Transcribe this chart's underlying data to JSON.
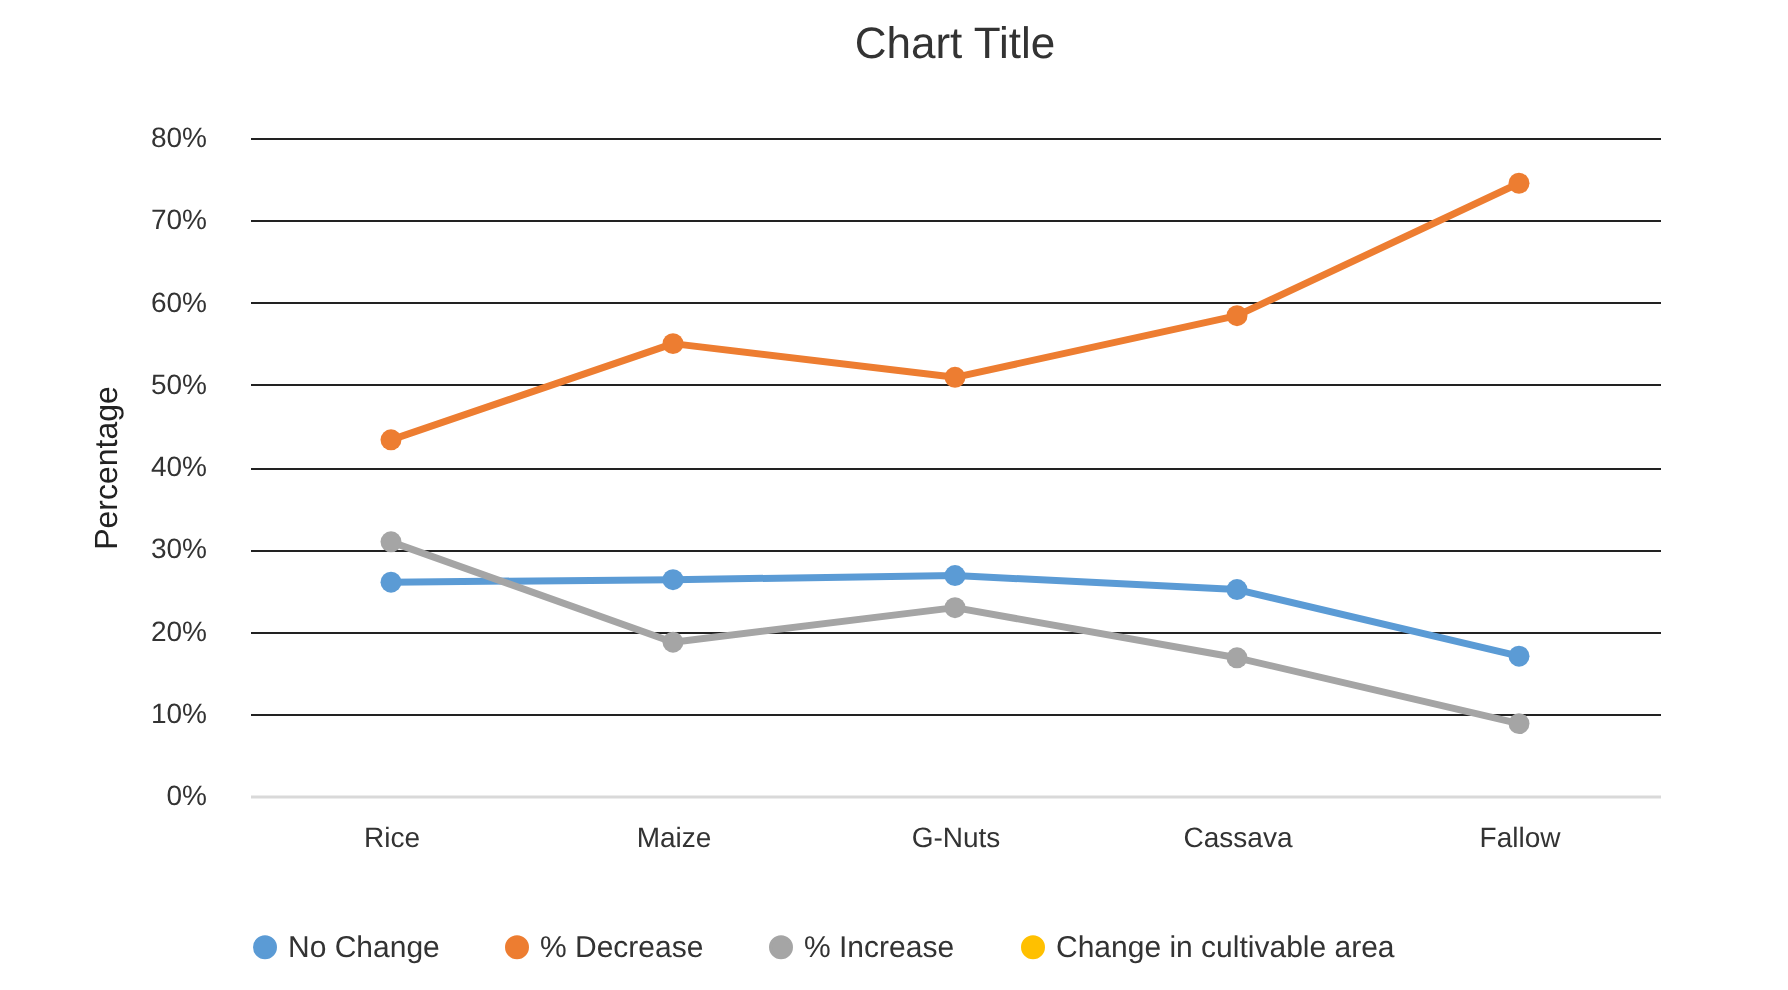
{
  "chart_data": {
    "type": "line",
    "title": "Chart Title",
    "ylabel": "Percentage",
    "categories": [
      "Rice",
      "Maize",
      "G-Nuts",
      "Cassava",
      "Fallow"
    ],
    "series": [
      {
        "name": "No Change",
        "color": "#5b9bd5",
        "values": [
          26.0,
          26.3,
          26.8,
          25.1,
          17.0
        ]
      },
      {
        "name": "% Decrease",
        "color": "#ed7d31",
        "values": [
          43.3,
          55.0,
          50.9,
          58.4,
          74.5
        ]
      },
      {
        "name": "% Increase",
        "color": "#a5a5a5",
        "values": [
          30.9,
          18.7,
          22.9,
          16.8,
          8.8
        ]
      },
      {
        "name": "Change in cultivable area",
        "color": "#ffc000",
        "values": [
          null,
          null,
          null,
          null,
          null
        ]
      }
    ],
    "ylim": [
      0,
      80
    ],
    "yticks": [
      {
        "value": 0,
        "label": "0%"
      },
      {
        "value": 10,
        "label": "10%"
      },
      {
        "value": 20,
        "label": "20%"
      },
      {
        "value": 30,
        "label": "30%"
      },
      {
        "value": 40,
        "label": "40%"
      },
      {
        "value": 50,
        "label": "50%"
      },
      {
        "value": 60,
        "label": "60%"
      },
      {
        "value": 70,
        "label": "70%"
      },
      {
        "value": 80,
        "label": "80%"
      }
    ],
    "grid": "y",
    "legend": "bottom",
    "marker": "circle",
    "line_style": "solid"
  }
}
